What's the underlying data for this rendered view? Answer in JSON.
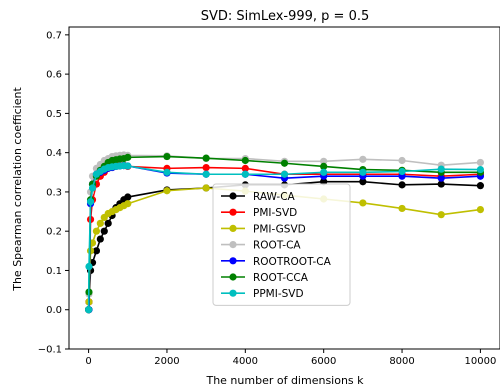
{
  "chart_data": {
    "type": "line",
    "title": "SVD: SimLex-999, p = 0.5",
    "xlabel": "The number of dimensions k",
    "ylabel": "The Spearman correlation coefficient",
    "xlim": [
      -500,
      10500
    ],
    "ylim": [
      -0.1,
      0.72
    ],
    "xticks": [
      0,
      2000,
      4000,
      6000,
      8000,
      10000
    ],
    "xtick_labels": [
      "0",
      "2000",
      "4000",
      "6000",
      "8000",
      "10000"
    ],
    "yticks": [
      -0.1,
      0.0,
      0.1,
      0.2,
      0.3,
      0.4,
      0.5,
      0.6,
      0.7
    ],
    "ytick_labels": [
      "−0.1",
      "0.0",
      "0.1",
      "0.2",
      "0.3",
      "0.4",
      "0.5",
      "0.6",
      "0.7"
    ],
    "grid": false,
    "legend_position": "lower-center",
    "x": [
      1,
      10,
      50,
      100,
      200,
      300,
      400,
      500,
      600,
      700,
      800,
      900,
      1000,
      2000,
      3000,
      4000,
      5000,
      6000,
      7000,
      8000,
      9000,
      10000
    ],
    "series": [
      {
        "name": "RAW-CA",
        "color": "#000000",
        "values": [
          0.0,
          0.02,
          0.1,
          0.12,
          0.15,
          0.18,
          0.2,
          0.22,
          0.24,
          0.26,
          0.27,
          0.28,
          0.287,
          0.305,
          0.31,
          0.318,
          0.318,
          0.326,
          0.326,
          0.318,
          0.32,
          0.316
        ]
      },
      {
        "name": "PMI-SVD",
        "color": "#ff0000",
        "values": [
          0.0,
          0.02,
          0.23,
          0.28,
          0.32,
          0.34,
          0.35,
          0.36,
          0.362,
          0.365,
          0.367,
          0.368,
          0.365,
          0.36,
          0.362,
          0.36,
          0.345,
          0.345,
          0.345,
          0.345,
          0.34,
          0.345
        ]
      },
      {
        "name": "PMI-GSVD",
        "color": "#bfbf00",
        "values": [
          0.0,
          0.02,
          0.15,
          0.17,
          0.2,
          0.22,
          0.235,
          0.245,
          0.25,
          0.255,
          0.26,
          0.265,
          0.27,
          0.303,
          0.31,
          0.302,
          0.292,
          0.282,
          0.272,
          0.258,
          0.242,
          0.255
        ]
      },
      {
        "name": "ROOT-CA",
        "color": "#bfbfbf",
        "values": [
          0.0,
          0.04,
          0.3,
          0.34,
          0.36,
          0.37,
          0.38,
          0.385,
          0.39,
          0.392,
          0.393,
          0.394,
          0.393,
          0.392,
          0.385,
          0.385,
          0.378,
          0.378,
          0.383,
          0.38,
          0.368,
          0.375
        ]
      },
      {
        "name": "ROOTROOT-CA",
        "color": "#0000ff",
        "values": [
          0.0,
          0.0,
          0.27,
          0.32,
          0.345,
          0.35,
          0.355,
          0.36,
          0.362,
          0.365,
          0.366,
          0.367,
          0.366,
          0.348,
          0.345,
          0.345,
          0.335,
          0.34,
          0.34,
          0.34,
          0.335,
          0.34
        ]
      },
      {
        "name": "ROOT-CCA",
        "color": "#008000",
        "values": [
          0.0,
          0.045,
          0.28,
          0.32,
          0.34,
          0.355,
          0.365,
          0.375,
          0.38,
          0.382,
          0.384,
          0.385,
          0.388,
          0.39,
          0.386,
          0.38,
          0.373,
          0.365,
          0.357,
          0.355,
          0.35,
          0.35
        ]
      },
      {
        "name": "PPMI-SVD",
        "color": "#00bfbf",
        "values": [
          0.0,
          0.11,
          0.275,
          0.31,
          0.345,
          0.352,
          0.358,
          0.362,
          0.364,
          0.365,
          0.366,
          0.367,
          0.366,
          0.35,
          0.345,
          0.345,
          0.345,
          0.35,
          0.35,
          0.352,
          0.358,
          0.357
        ]
      }
    ]
  }
}
